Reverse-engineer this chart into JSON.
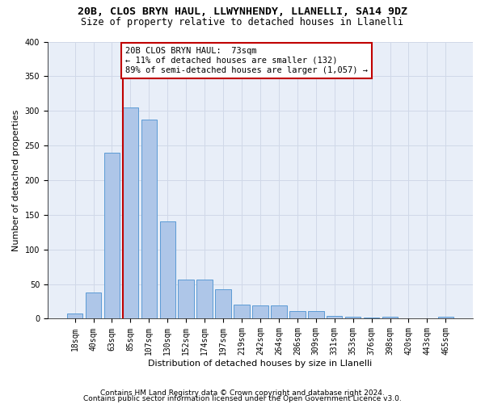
{
  "title_line1": "20B, CLOS BRYN HAUL, LLWYNHENDY, LLANELLI, SA14 9DZ",
  "title_line2": "Size of property relative to detached houses in Llanelli",
  "xlabel": "Distribution of detached houses by size in Llanelli",
  "ylabel": "Number of detached properties",
  "categories": [
    "18sqm",
    "40sqm",
    "63sqm",
    "85sqm",
    "107sqm",
    "130sqm",
    "152sqm",
    "174sqm",
    "197sqm",
    "219sqm",
    "242sqm",
    "264sqm",
    "286sqm",
    "309sqm",
    "331sqm",
    "353sqm",
    "376sqm",
    "398sqm",
    "420sqm",
    "443sqm",
    "465sqm"
  ],
  "values": [
    8,
    38,
    240,
    305,
    287,
    140,
    57,
    56,
    43,
    20,
    19,
    19,
    11,
    11,
    4,
    3,
    2,
    3,
    1,
    1,
    3
  ],
  "bar_color": "#aec6e8",
  "bar_edge_color": "#5b9bd5",
  "vline_x_index": 2.57,
  "vline_color": "#c00000",
  "annotation_box_text": "20B CLOS BRYN HAUL:  73sqm\n← 11% of detached houses are smaller (132)\n89% of semi-detached houses are larger (1,057) →",
  "annotation_box_color": "#c00000",
  "annotation_facecolor": "white",
  "ylim": [
    0,
    400
  ],
  "yticks": [
    0,
    50,
    100,
    150,
    200,
    250,
    300,
    350,
    400
  ],
  "grid_color": "#d0d8e8",
  "bg_color": "#e8eef8",
  "footer_line1": "Contains HM Land Registry data © Crown copyright and database right 2024.",
  "footer_line2": "Contains public sector information licensed under the Open Government Licence v3.0.",
  "title1_fontsize": 9.5,
  "title2_fontsize": 8.5,
  "xlabel_fontsize": 8,
  "ylabel_fontsize": 8,
  "tick_fontsize": 7,
  "annotation_fontsize": 7.5,
  "footer_fontsize": 6.5
}
